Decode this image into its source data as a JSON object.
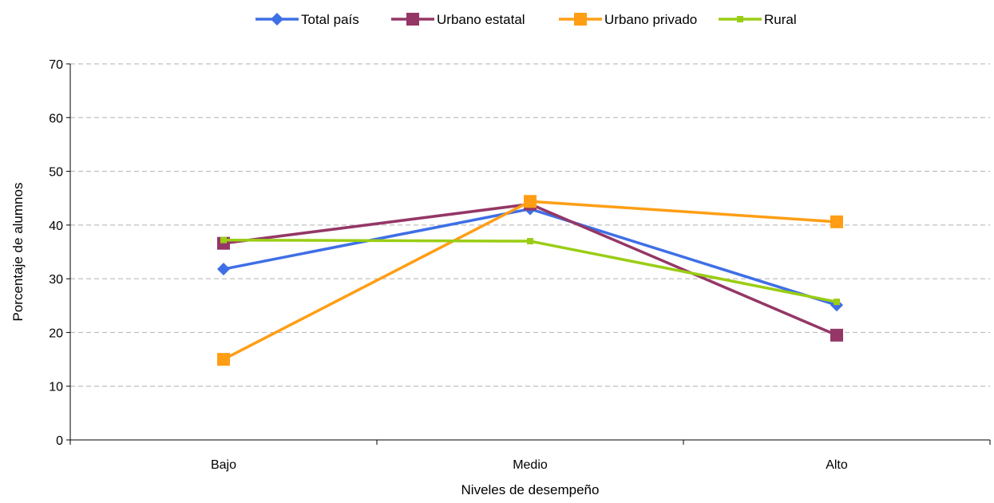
{
  "chart_data": {
    "type": "line",
    "title": "",
    "xlabel": "Niveles de desempeño",
    "ylabel": "Porcentaje de alumnos",
    "categories": [
      "Bajo",
      "Medio",
      "Alto"
    ],
    "ylim": [
      0,
      70
    ],
    "yticks": [
      0,
      10,
      20,
      30,
      40,
      50,
      60,
      70
    ],
    "grid": true,
    "legend_position": "top",
    "series": [
      {
        "name": "Total país",
        "values": [
          31.8,
          43.0,
          25.1
        ],
        "color": "#3f6fe6",
        "marker": "diamond"
      },
      {
        "name": "Urbano estatal",
        "values": [
          36.6,
          43.9,
          19.5
        ],
        "color": "#943766",
        "marker": "square"
      },
      {
        "name": "Urbano privado",
        "values": [
          15.0,
          44.4,
          40.6
        ],
        "color": "#ff9e15",
        "marker": "square"
      },
      {
        "name": "Rural",
        "values": [
          37.2,
          37.0,
          25.7
        ],
        "color": "#9acd14",
        "marker": "small-square"
      }
    ]
  }
}
